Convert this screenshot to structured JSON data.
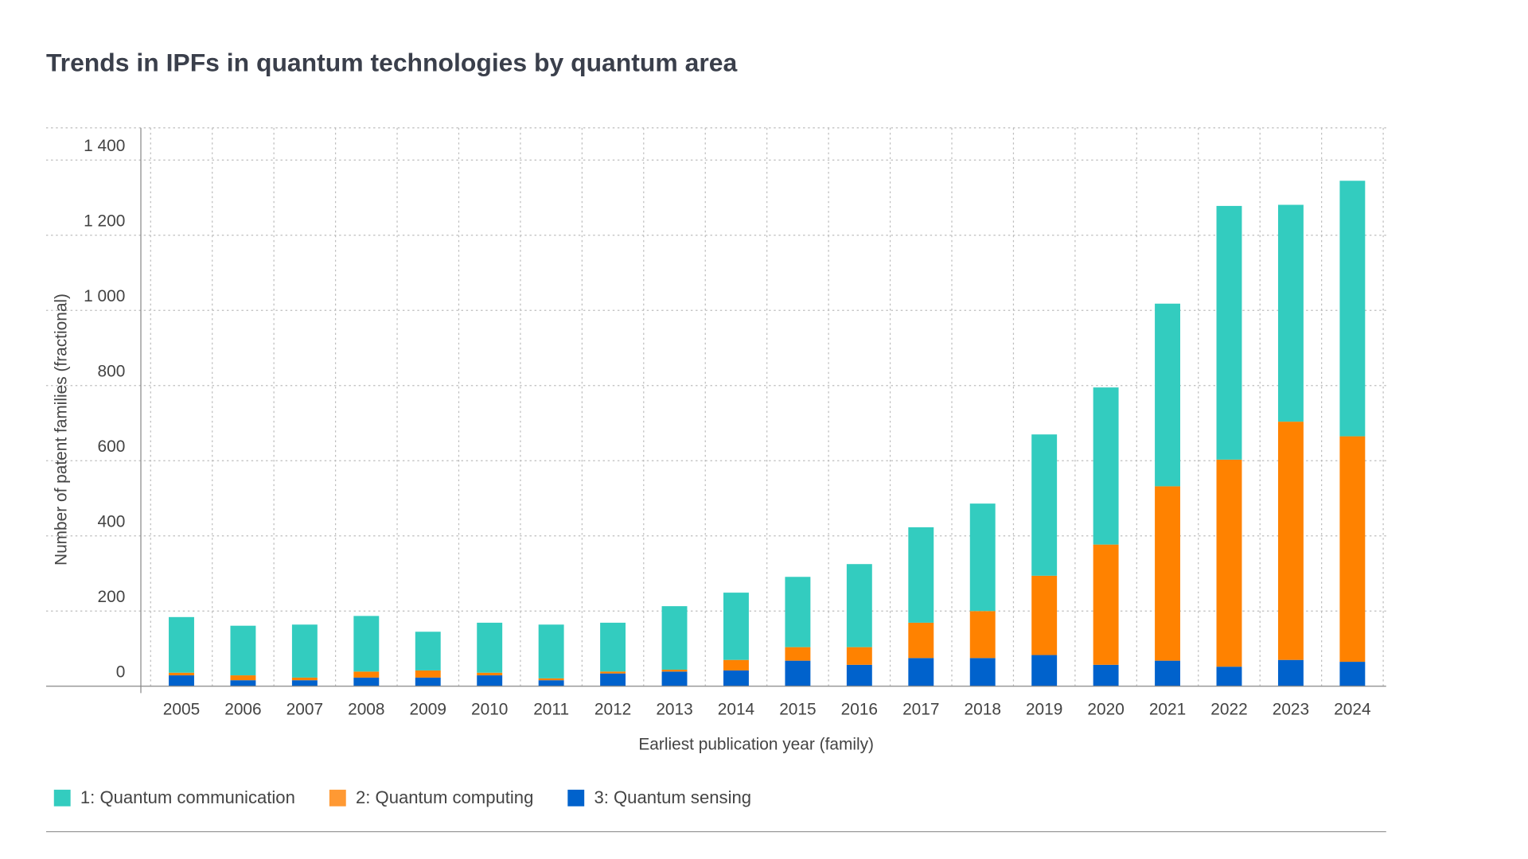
{
  "chart_data": {
    "type": "bar",
    "stacked": true,
    "title": "Trends in IPFs in quantum technologies by quantum area",
    "xlabel": "Earliest publication year (family)",
    "ylabel": "Number of patent families (fractional)",
    "ylim": [
      0,
      1400
    ],
    "yticks": [
      "0",
      "200",
      "400",
      "600",
      "800",
      "1 000",
      "1 200",
      "1 400"
    ],
    "grid": true,
    "legend_position": "bottom-left",
    "categories": [
      "2005",
      "2006",
      "2007",
      "2008",
      "2009",
      "2010",
      "2011",
      "2012",
      "2013",
      "2014",
      "2015",
      "2016",
      "2017",
      "2018",
      "2019",
      "2020",
      "2021",
      "2022",
      "2023",
      "2024"
    ],
    "series": [
      {
        "name": "3: Quantum sensing",
        "color": "#0062CC",
        "values": [
          29,
          16,
          16,
          23,
          23,
          29,
          16,
          34,
          39,
          42,
          68,
          57,
          75,
          75,
          83,
          57,
          68,
          52,
          70,
          65
        ]
      },
      {
        "name": "2: Quantum computing",
        "color": "#FF8200",
        "values": [
          7,
          13,
          7,
          16,
          19,
          7,
          5,
          5,
          5,
          28,
          36,
          47,
          94,
          125,
          211,
          320,
          464,
          551,
          634,
          600
        ]
      },
      {
        "name": "1: Quantum communication",
        "color": "#33CCBF",
        "values": [
          148,
          132,
          141,
          148,
          103,
          133,
          143,
          130,
          169,
          179,
          187,
          221,
          254,
          286,
          376,
          418,
          486,
          675,
          577,
          680
        ]
      }
    ],
    "legend": [
      {
        "label": "1: Quantum communication",
        "color": "#33CCBF"
      },
      {
        "label": "2: Quantum computing",
        "color": "#FF9933"
      },
      {
        "label": "3: Quantum sensing",
        "color": "#0062CC"
      }
    ]
  }
}
